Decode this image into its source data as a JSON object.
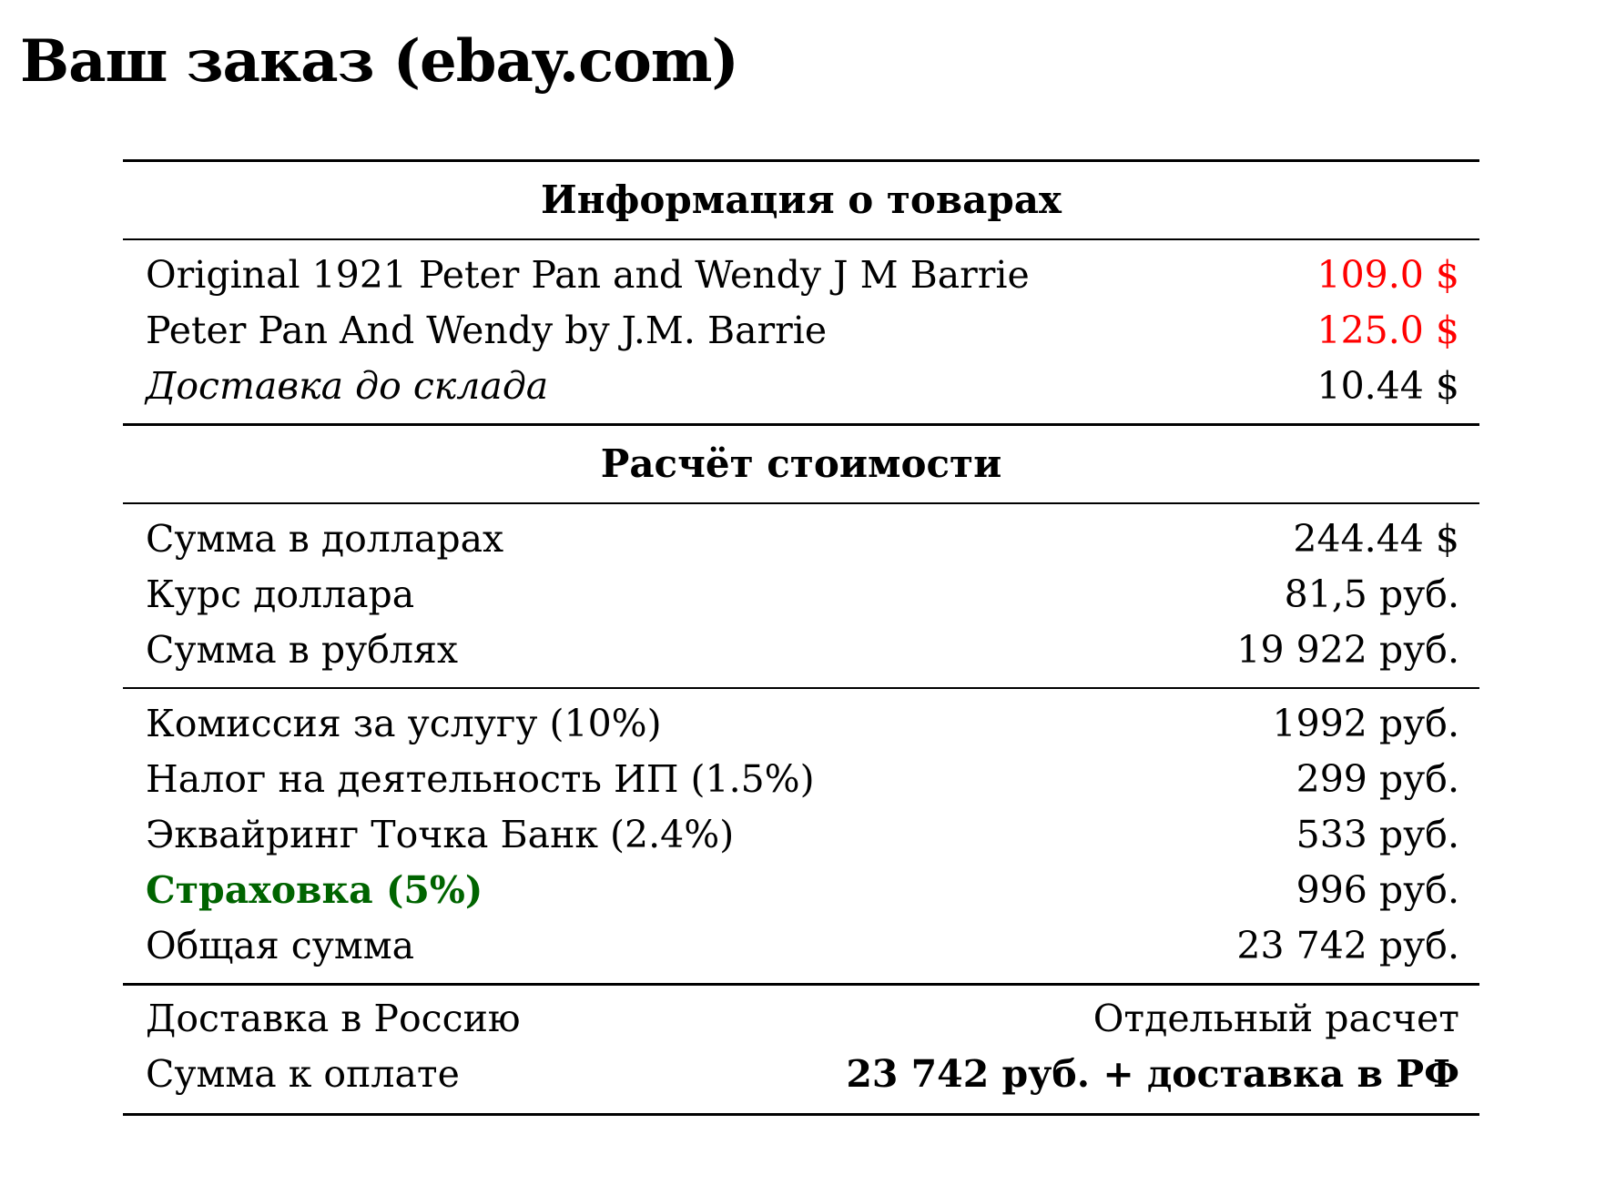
{
  "title": "Ваш заказ (ebay.com)",
  "colors": {
    "price": "#ff0000",
    "insurance": "#006400"
  },
  "items_section": {
    "header": "Информация о товарах",
    "rows": [
      {
        "label": "Original 1921 Peter Pan and Wendy J M Barrie",
        "value": "109.0 $"
      },
      {
        "label": "Peter Pan And Wendy by J.M. Barrie",
        "value": "125.0 $"
      },
      {
        "label": "Доставка до склада",
        "value": "10.44 $"
      }
    ]
  },
  "calc_section": {
    "header": "Расчёт стоимости",
    "conversion": [
      {
        "label": "Сумма в долларах",
        "value": "244.44 $"
      },
      {
        "label": "Курс доллара",
        "value": "81,5 руб."
      },
      {
        "label": "Сумма в рублях",
        "value": "19 922 руб."
      }
    ],
    "fees": [
      {
        "label": "Комиссия за услугу (10%)",
        "value": "1992 руб."
      },
      {
        "label": "Налог на деятельность ИП (1.5%)",
        "value": "299 руб."
      },
      {
        "label": "Эквайринг Точка Банк (2.4%)",
        "value": "533 руб."
      },
      {
        "label": "Страховка (5%)",
        "value": "996 руб."
      },
      {
        "label": "Общая сумма",
        "value": "23 742 руб."
      }
    ],
    "final": [
      {
        "label": "Доставка в Россию",
        "value": "Отдельный расчет"
      },
      {
        "label": "Сумма к оплате",
        "value": "23 742 руб. + доставка в РФ"
      }
    ]
  }
}
